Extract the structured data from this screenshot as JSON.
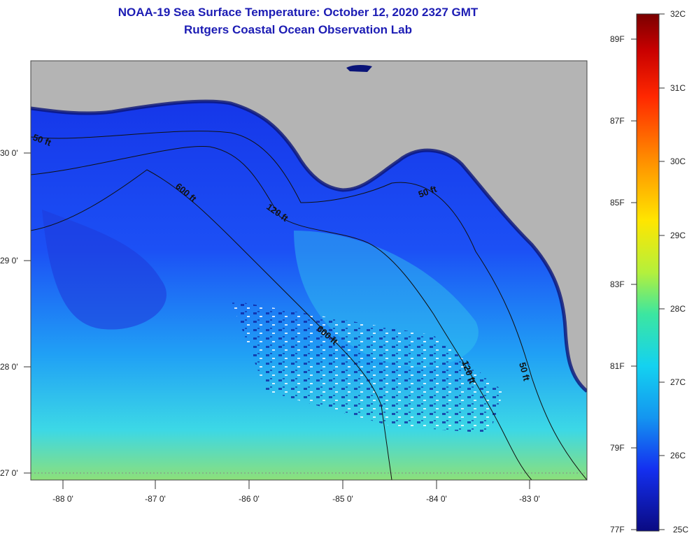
{
  "title": "NOAA-19 Sea Surface Temperature:  October 12, 2020 2327 GMT",
  "subtitle": "Rutgers Coastal Ocean Observation Lab",
  "axes": {
    "x_ticks": [
      "-88 0'",
      "-87 0'",
      "-86 0'",
      "-85 0'",
      "-84 0'",
      "-83 0'"
    ],
    "y_ticks": [
      "30 0'",
      "29 0'",
      "28 0'",
      "27 0'"
    ]
  },
  "contours": {
    "labels": [
      "50 ft",
      "600 ft",
      "120 ft",
      "50 ft",
      "600 ft",
      "120 ft",
      "50 ft"
    ]
  },
  "colorbar": {
    "celsius": [
      "32C",
      "31C",
      "30C",
      "29C",
      "28C",
      "27C",
      "26C",
      "25C"
    ],
    "fahrenheit": [
      "89F",
      "87F",
      "85F",
      "83F",
      "81F",
      "79F",
      "77F"
    ]
  },
  "colors": {
    "land": "#b4b4b4",
    "title": "#1c1cb4",
    "water_deep": "#1c3cf0",
    "water_warm": "#3cd2f0"
  }
}
